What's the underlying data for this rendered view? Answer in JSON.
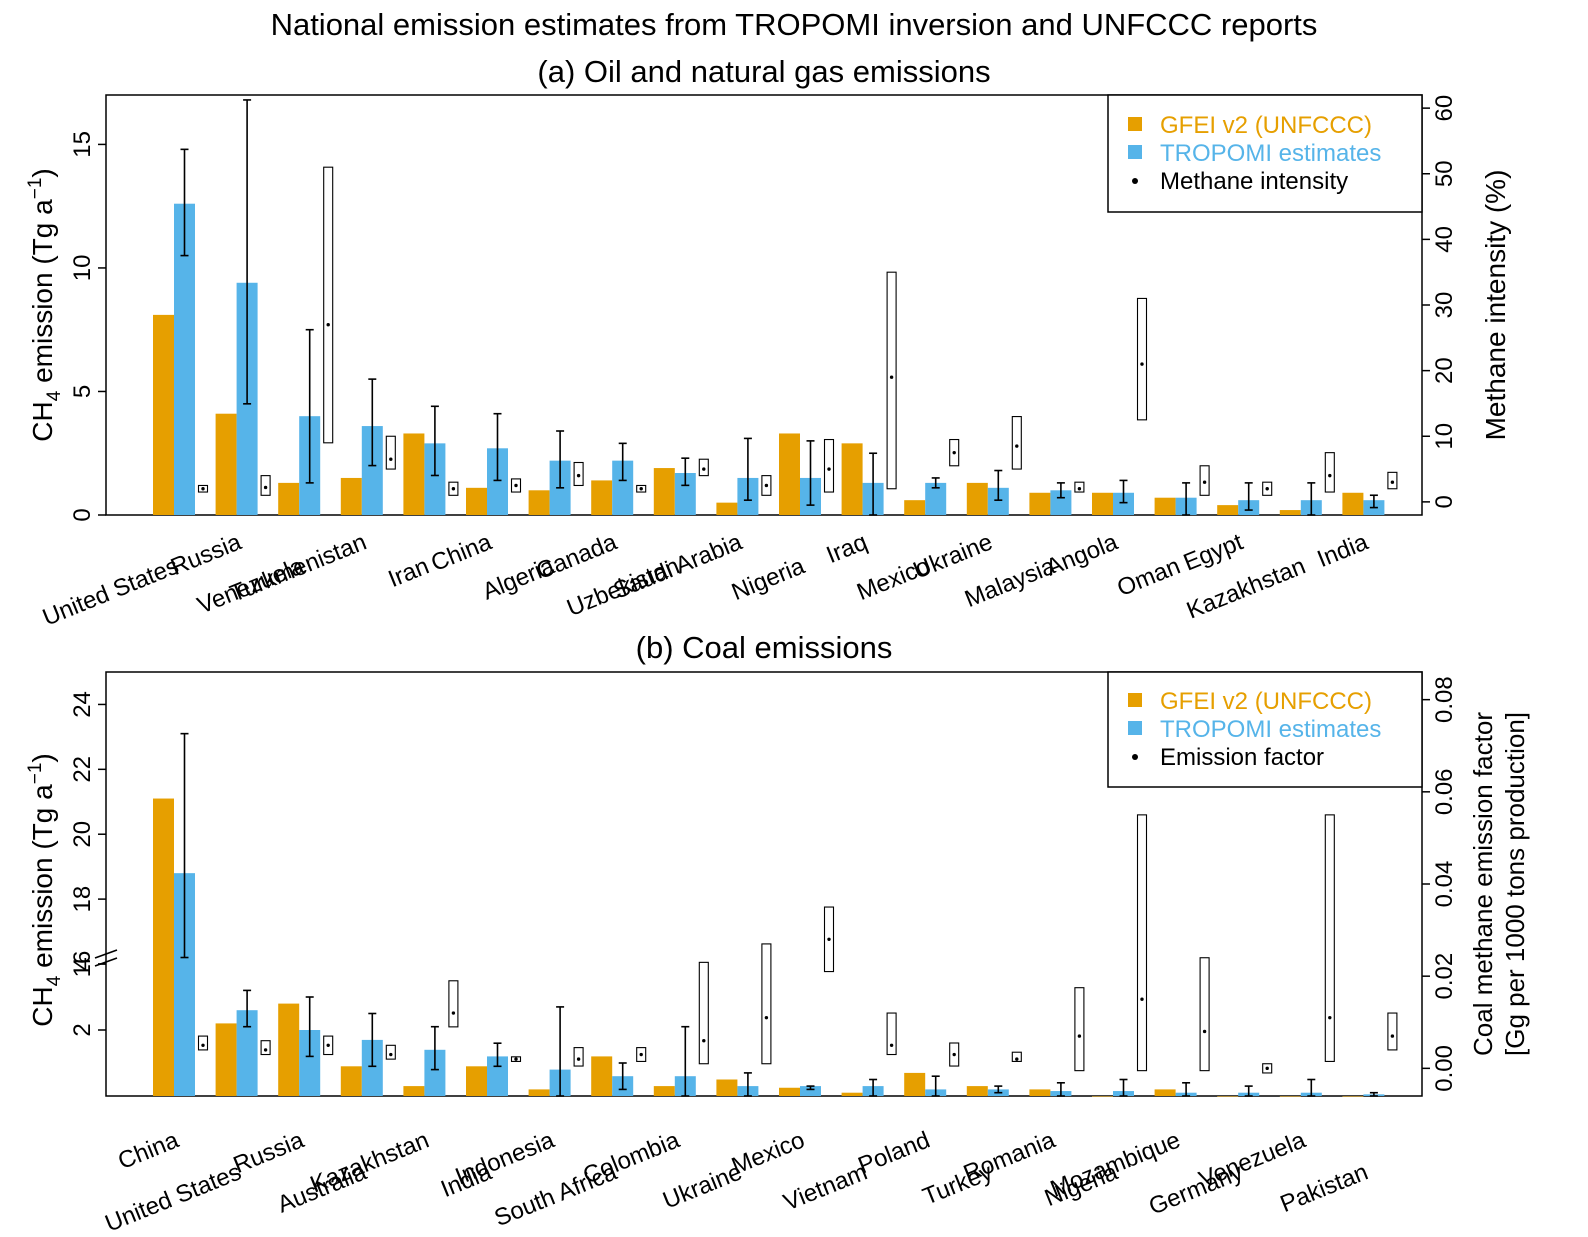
{
  "title": "National emission estimates from TROPOMI inversion and UNFCCC reports",
  "colors": {
    "gfei": "#E69F00",
    "tropomi": "#56B4E9",
    "ink": "#000000"
  },
  "chart_data": [
    {
      "type": "bar",
      "title": "(a) Oil and natural gas emissions",
      "ylabel_main": "CH",
      "ylabel_sub": "4",
      "ylabel_tail": " emission (Tg a",
      "ylabel_sup": "−1",
      "ylabel_close": ")",
      "y2label": "Methane intensity (%)",
      "ylim": [
        0,
        17
      ],
      "y2lim": [
        -2,
        62
      ],
      "yticks": [
        0,
        5,
        10,
        15
      ],
      "y2ticks": [
        0,
        10,
        20,
        30,
        40,
        50,
        60
      ],
      "legend": {
        "position": "top-right",
        "gfei": "GFEI v2 (UNFCCC)",
        "tropomi": "TROPOMI estimates",
        "marker": "Methane intensity"
      },
      "categories": [
        "United States",
        "Russia",
        "Venezuela",
        "Turkmenistan",
        "Iran",
        "China",
        "Algeria",
        "Canada",
        "Uzbekistan",
        "Saudi Arabia",
        "Nigeria",
        "Iraq",
        "Mexico",
        "Ukraine",
        "Malaysia",
        "Angola",
        "Oman",
        "Egypt",
        "Kazakhstan",
        "India"
      ],
      "series": [
        {
          "name": "GFEI v2 (UNFCCC)",
          "values": [
            8.1,
            4.1,
            1.3,
            1.5,
            3.3,
            1.1,
            1.0,
            1.4,
            1.9,
            0.5,
            3.3,
            2.9,
            0.6,
            1.3,
            0.9,
            0.9,
            0.7,
            0.4,
            0.2,
            0.9
          ]
        },
        {
          "name": "TROPOMI estimates",
          "values": [
            12.6,
            9.4,
            4.0,
            3.6,
            2.9,
            2.7,
            2.2,
            2.2,
            1.7,
            1.5,
            1.5,
            1.3,
            1.3,
            1.1,
            1.0,
            0.9,
            0.7,
            0.6,
            0.6,
            0.6
          ]
        }
      ],
      "tropomi_err": [
        [
          10.5,
          14.8
        ],
        [
          4.5,
          16.8
        ],
        [
          1.3,
          7.5
        ],
        [
          2.0,
          5.5
        ],
        [
          1.6,
          4.4
        ],
        [
          1.4,
          4.1
        ],
        [
          1.1,
          3.4
        ],
        [
          1.4,
          2.9
        ],
        [
          1.2,
          2.3
        ],
        [
          0.6,
          3.1
        ],
        [
          0.4,
          3.0
        ],
        [
          0.0,
          2.5
        ],
        [
          1.1,
          1.5
        ],
        [
          0.6,
          1.8
        ],
        [
          0.7,
          1.3
        ],
        [
          0.5,
          1.4
        ],
        [
          0.0,
          1.3
        ],
        [
          0.2,
          1.3
        ],
        [
          0.0,
          1.3
        ],
        [
          0.3,
          0.8
        ]
      ],
      "marker_values": [
        2.0,
        2.2,
        27.0,
        6.5,
        2.0,
        2.5,
        4.0,
        2.0,
        5.0,
        2.5,
        5.0,
        19.0,
        7.5,
        8.5,
        2.0,
        21.0,
        3.0,
        2.0,
        4.0,
        3.0
      ],
      "marker_ranges": [
        [
          1.5,
          2.5
        ],
        [
          1.0,
          4.0
        ],
        [
          9.0,
          51.0
        ],
        [
          5.0,
          10.0
        ],
        [
          1.0,
          3.0
        ],
        [
          1.5,
          3.5
        ],
        [
          2.5,
          6.0
        ],
        [
          1.5,
          2.5
        ],
        [
          4.0,
          6.5
        ],
        [
          1.0,
          4.0
        ],
        [
          1.5,
          9.5
        ],
        [
          2.0,
          35.0
        ],
        [
          5.5,
          9.5
        ],
        [
          5.0,
          13.0
        ],
        [
          1.5,
          3.0
        ],
        [
          12.5,
          31.0
        ],
        [
          1.0,
          5.5
        ],
        [
          1.0,
          3.0
        ],
        [
          1.5,
          7.5
        ],
        [
          2.0,
          4.5
        ]
      ]
    },
    {
      "type": "bar",
      "title": "(b) Coal emissions",
      "ylabel_main": "CH",
      "ylabel_sub": "4",
      "ylabel_tail": " emission (Tg a",
      "ylabel_sup": "−1",
      "ylabel_close": ")",
      "y2label_line1": "Coal methane emission factor",
      "y2label_line2": "[Gg per 1000 tons production]",
      "ylim": [
        0,
        25
      ],
      "axis_break": [
        4,
        16
      ],
      "yticks_low": [
        2,
        4
      ],
      "yticks_high": [
        16,
        18,
        20,
        22,
        24
      ],
      "y2lim": [
        -0.006,
        0.086
      ],
      "y2ticks": [
        "0.00",
        "0.02",
        "0.04",
        "0.06",
        "0.08"
      ],
      "legend": {
        "position": "top-right",
        "gfei": "GFEI v2 (UNFCCC)",
        "tropomi": "TROPOMI estimates",
        "marker": "Emission factor"
      },
      "categories": [
        "China",
        "United States",
        "Russia",
        "Australia",
        "Kazakhstan",
        "India",
        "Indonesia",
        "South Africa",
        "Colombia",
        "Ukraine",
        "Mexico",
        "Vietnam",
        "Poland",
        "Turkey",
        "Romania",
        "Nigeria",
        "Mozambique",
        "Germany",
        "Venezuela",
        "Pakistan"
      ],
      "series": [
        {
          "name": "GFEI v2 (UNFCCC)",
          "values": [
            21.1,
            2.2,
            2.8,
            0.9,
            0.3,
            0.9,
            0.2,
            1.2,
            0.3,
            0.5,
            0.25,
            0.1,
            0.7,
            0.3,
            0.2,
            0.0,
            0.2,
            0.0,
            0.0,
            0.0
          ]
        },
        {
          "name": "TROPOMI estimates",
          "values": [
            18.8,
            2.6,
            2.0,
            1.7,
            1.4,
            1.2,
            0.8,
            0.6,
            0.6,
            0.3,
            0.3,
            0.3,
            0.2,
            0.2,
            0.15,
            0.15,
            0.1,
            0.1,
            0.1,
            0.05
          ]
        }
      ],
      "tropomi_err": [
        [
          16.2,
          23.1
        ],
        [
          2.1,
          3.2
        ],
        [
          1.2,
          3.0
        ],
        [
          0.9,
          2.5
        ],
        [
          0.8,
          2.1
        ],
        [
          0.9,
          1.6
        ],
        [
          0.0,
          2.7
        ],
        [
          0.2,
          1.0
        ],
        [
          0.0,
          2.1
        ],
        [
          0.0,
          0.7
        ],
        [
          0.2,
          0.3
        ],
        [
          0.0,
          0.5
        ],
        [
          0.0,
          0.6
        ],
        [
          0.1,
          0.3
        ],
        [
          0.0,
          0.4
        ],
        [
          0.0,
          0.5
        ],
        [
          0.0,
          0.4
        ],
        [
          0.0,
          0.3
        ],
        [
          0.0,
          0.5
        ],
        [
          0.0,
          0.1
        ]
      ],
      "marker_values": [
        0.005,
        0.004,
        0.005,
        0.003,
        0.012,
        0.002,
        0.002,
        0.003,
        0.006,
        0.011,
        0.028,
        0.005,
        0.003,
        0.002,
        0.007,
        0.015,
        0.008,
        0.0,
        0.011,
        0.007
      ],
      "marker_ranges": [
        [
          0.004,
          0.007
        ],
        [
          0.003,
          0.006
        ],
        [
          0.003,
          0.007
        ],
        [
          0.002,
          0.005
        ],
        [
          0.009,
          0.019
        ],
        [
          0.0015,
          0.0025
        ],
        [
          0.0005,
          0.0045
        ],
        [
          0.0015,
          0.0045
        ],
        [
          0.001,
          0.023
        ],
        [
          0.001,
          0.027
        ],
        [
          0.021,
          0.035
        ],
        [
          0.003,
          0.012
        ],
        [
          0.0005,
          0.0055
        ],
        [
          0.0015,
          0.0035
        ],
        [
          -0.0005,
          0.0175
        ],
        [
          -0.0005,
          0.055
        ],
        [
          -0.0005,
          0.024
        ],
        [
          -0.001,
          0.001
        ],
        [
          0.0015,
          0.055
        ],
        [
          0.004,
          0.012
        ]
      ]
    }
  ]
}
